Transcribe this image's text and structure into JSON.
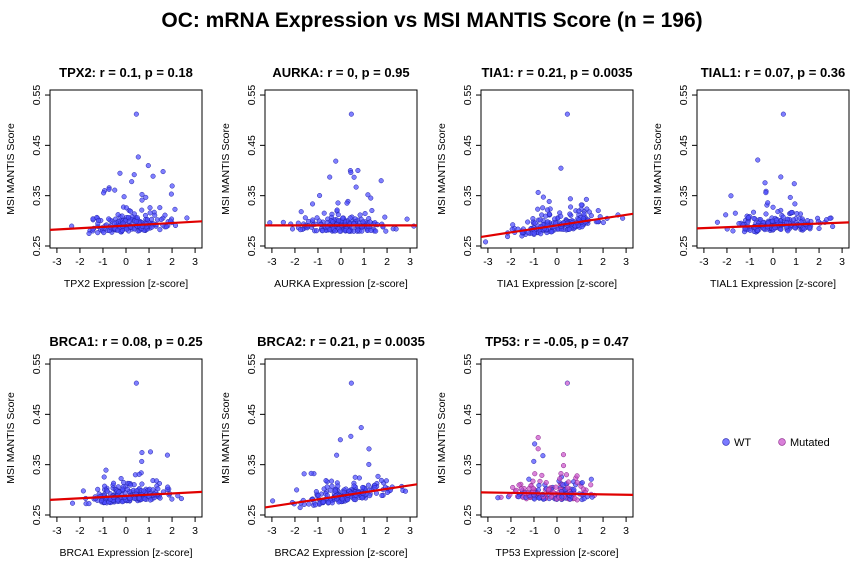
{
  "title": "OC: mRNA Expression vs MSI MANTIS Score (n = 196)",
  "legend": {
    "placement": "right of bottom row",
    "items": [
      {
        "label": "WT",
        "color": "#4d4dff"
      },
      {
        "label": "Mutated",
        "color": "#cc55cc"
      }
    ]
  },
  "colors": {
    "wt_point": "#4d4dff",
    "mutated_point": "#cc55cc",
    "fit_line": "#e00000"
  },
  "chart_data": [
    {
      "type": "scatter",
      "gene": "TPX2",
      "title": "TPX2: r = 0.1, p = 0.18",
      "xlabel": "TPX2 Expression [z-score]",
      "ylabel": "MSI MANTIS Score",
      "xlim": [
        -3,
        3
      ],
      "ylim": [
        0.25,
        0.55
      ],
      "xticks": [
        "-3",
        "-2",
        "-1",
        "0",
        "1",
        "2",
        "3"
      ],
      "yticks": [
        "0.25",
        "0.35",
        "0.45",
        "0.55"
      ],
      "fit": {
        "x": [
          -3.3,
          3.3
        ],
        "y": [
          0.282,
          0.299
        ]
      },
      "grid": false
    },
    {
      "type": "scatter",
      "gene": "AURKA",
      "title": "AURKA: r = 0, p = 0.95",
      "xlabel": "AURKA Expression [z-score]",
      "ylabel": "MSI MANTIS Score",
      "xlim": [
        -3,
        3
      ],
      "ylim": [
        0.25,
        0.55
      ],
      "xticks": [
        "-3",
        "-2",
        "-1",
        "0",
        "1",
        "2",
        "3"
      ],
      "yticks": [
        "0.25",
        "0.35",
        "0.45",
        "0.55"
      ],
      "fit": {
        "x": [
          -3.3,
          3.3
        ],
        "y": [
          0.291,
          0.291
        ]
      },
      "grid": false
    },
    {
      "type": "scatter",
      "gene": "TIA1",
      "title": "TIA1: r = 0.21, p = 0.0035",
      "xlabel": "TIA1 Expression [z-score]",
      "ylabel": "MSI MANTIS Score",
      "xlim": [
        -3,
        3
      ],
      "ylim": [
        0.25,
        0.55
      ],
      "xticks": [
        "-3",
        "-2",
        "-1",
        "0",
        "1",
        "2",
        "3"
      ],
      "yticks": [
        "0.25",
        "0.35",
        "0.45",
        "0.55"
      ],
      "fit": {
        "x": [
          -3.3,
          3.3
        ],
        "y": [
          0.268,
          0.314
        ]
      },
      "grid": false
    },
    {
      "type": "scatter",
      "gene": "TIAL1",
      "title": "TIAL1: r = 0.07, p = 0.36",
      "xlabel": "TIAL1 Expression [z-score]",
      "ylabel": "MSI MANTIS Score",
      "xlim": [
        -3,
        3
      ],
      "ylim": [
        0.25,
        0.55
      ],
      "xticks": [
        "-3",
        "-2",
        "-1",
        "0",
        "1",
        "2",
        "3"
      ],
      "yticks": [
        "0.25",
        "0.35",
        "0.45",
        "0.55"
      ],
      "fit": {
        "x": [
          -3.3,
          3.3
        ],
        "y": [
          0.285,
          0.297
        ]
      },
      "grid": false
    },
    {
      "type": "scatter",
      "gene": "BRCA1",
      "title": "BRCA1: r = 0.08, p = 0.25",
      "xlabel": "BRCA1 Expression [z-score]",
      "ylabel": "MSI MANTIS Score",
      "xlim": [
        -3,
        3
      ],
      "ylim": [
        0.25,
        0.55
      ],
      "xticks": [
        "-3",
        "-2",
        "-1",
        "0",
        "1",
        "2",
        "3"
      ],
      "yticks": [
        "0.25",
        "0.35",
        "0.45",
        "0.55"
      ],
      "fit": {
        "x": [
          -3.3,
          3.3
        ],
        "y": [
          0.28,
          0.296
        ]
      },
      "grid": false
    },
    {
      "type": "scatter",
      "gene": "BRCA2",
      "title": "BRCA2: r = 0.21, p = 0.0035",
      "xlabel": "BRCA2 Expression [z-score]",
      "ylabel": "MSI MANTIS Score",
      "xlim": [
        -3,
        3
      ],
      "ylim": [
        0.25,
        0.55
      ],
      "xticks": [
        "-3",
        "-2",
        "-1",
        "0",
        "1",
        "2",
        "3"
      ],
      "yticks": [
        "0.25",
        "0.35",
        "0.45",
        "0.55"
      ],
      "fit": {
        "x": [
          -3.3,
          3.3
        ],
        "y": [
          0.265,
          0.311
        ]
      },
      "grid": false
    },
    {
      "type": "scatter",
      "gene": "TP53",
      "title": "TP53: r = -0.05, p = 0.47",
      "xlabel": "TP53 Expression [z-score]",
      "ylabel": "MSI MANTIS Score",
      "xlim": [
        -3,
        3
      ],
      "ylim": [
        0.25,
        0.55
      ],
      "xticks": [
        "-3",
        "-2",
        "-1",
        "0",
        "1",
        "2",
        "3"
      ],
      "yticks": [
        "0.25",
        "0.35",
        "0.45",
        "0.55"
      ],
      "fit": {
        "x": [
          -3.3,
          3.3
        ],
        "y": [
          0.295,
          0.29
        ]
      },
      "grid": false
    }
  ]
}
